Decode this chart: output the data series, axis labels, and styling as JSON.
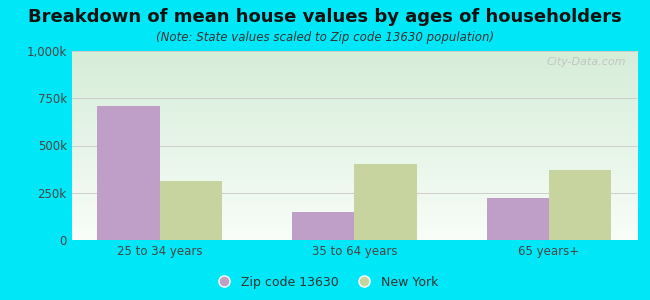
{
  "title": "Breakdown of mean house values by ages of householders",
  "subtitle": "(Note: State values scaled to Zip code 13630 population)",
  "categories": [
    "25 to 34 years",
    "35 to 64 years",
    "65 years+"
  ],
  "zip_values": [
    710000,
    150000,
    220000
  ],
  "ny_values": [
    310000,
    400000,
    370000
  ],
  "zip_color": "#bf9fc8",
  "ny_color": "#c8d4a0",
  "background_outer": "#00e8f8",
  "ylim": [
    0,
    1000000
  ],
  "yticks": [
    0,
    250000,
    500000,
    750000,
    1000000
  ],
  "ytick_labels": [
    "0",
    "250k",
    "500k",
    "750k",
    "1,000k"
  ],
  "legend_zip": "Zip code 13630",
  "legend_ny": "New York",
  "bar_width": 0.32,
  "title_fontsize": 13,
  "subtitle_fontsize": 8.5,
  "tick_fontsize": 8.5,
  "legend_fontsize": 9,
  "watermark": "City-Data.com"
}
